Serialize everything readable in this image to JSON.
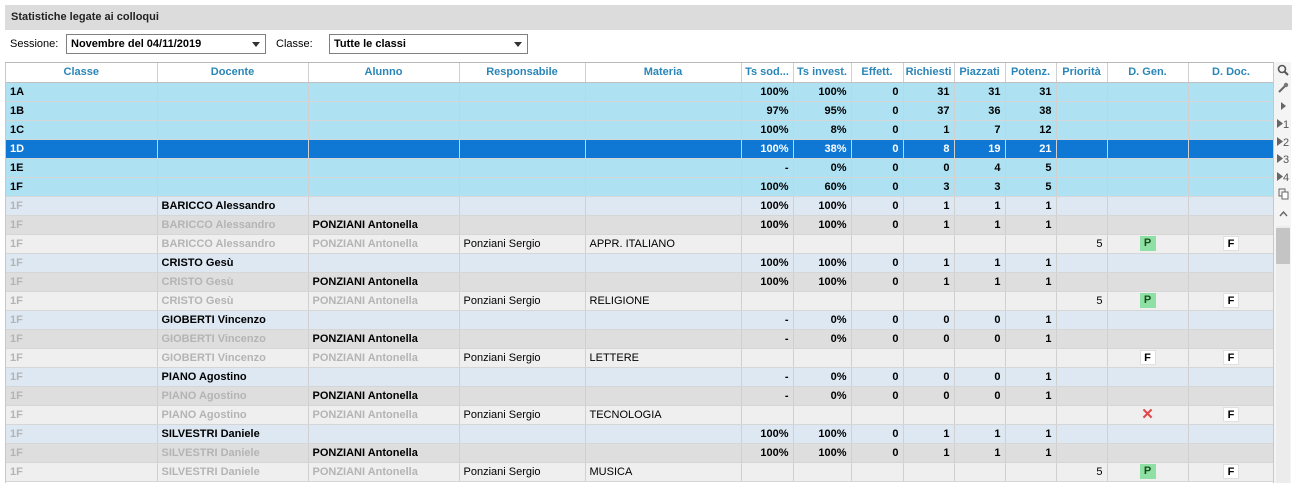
{
  "panel": {
    "title": "Statistiche legate ai colloqui"
  },
  "filters": {
    "session_label": "Sessione:",
    "session_value": "Novembre del 04/11/2019",
    "class_label": "Classe:",
    "class_value": "Tutte le classi"
  },
  "columns": [
    "Classe",
    "Docente",
    "Alunno",
    "Responsabile",
    "Materia",
    "Ts sod...",
    "Ts invest.",
    "Effett.",
    "Richiesti",
    "Piazzati",
    "Potenz.",
    "Priorità",
    "D. Gen.",
    "D. Doc."
  ],
  "rows": [
    {
      "type": "cls",
      "classe": "1A",
      "docente": "",
      "alunno": "",
      "resp": "",
      "materia": "",
      "tssod": "100%",
      "tsinv": "100%",
      "eff": "0",
      "ric": "31",
      "piaz": "31",
      "pot": "31",
      "prio": "",
      "dgen": "",
      "ddoc": ""
    },
    {
      "type": "cls",
      "classe": "1B",
      "docente": "",
      "alunno": "",
      "resp": "",
      "materia": "",
      "tssod": "97%",
      "tsinv": "95%",
      "eff": "0",
      "ric": "37",
      "piaz": "36",
      "pot": "38",
      "prio": "",
      "dgen": "",
      "ddoc": ""
    },
    {
      "type": "cls",
      "classe": "1C",
      "docente": "",
      "alunno": "",
      "resp": "",
      "materia": "",
      "tssod": "100%",
      "tsinv": "8%",
      "eff": "0",
      "ric": "1",
      "piaz": "7",
      "pot": "12",
      "prio": "",
      "dgen": "",
      "ddoc": ""
    },
    {
      "type": "sel",
      "classe": "1D",
      "docente": "",
      "alunno": "",
      "resp": "",
      "materia": "",
      "tssod": "100%",
      "tsinv": "38%",
      "eff": "0",
      "ric": "8",
      "piaz": "19",
      "pot": "21",
      "prio": "",
      "dgen": "",
      "ddoc": ""
    },
    {
      "type": "cls",
      "classe": "1E",
      "docente": "",
      "alunno": "",
      "resp": "",
      "materia": "",
      "tssod": "-",
      "tsinv": "0%",
      "eff": "0",
      "ric": "0",
      "piaz": "4",
      "pot": "5",
      "prio": "",
      "dgen": "",
      "ddoc": ""
    },
    {
      "type": "cls",
      "classe": "1F",
      "docente": "",
      "alunno": "",
      "resp": "",
      "materia": "",
      "tssod": "100%",
      "tsinv": "60%",
      "eff": "0",
      "ric": "3",
      "piaz": "3",
      "pot": "5",
      "prio": "",
      "dgen": "",
      "ddoc": ""
    },
    {
      "type": "doc",
      "classe": "1F",
      "docente": "BARICCO Alessandro",
      "alunno": "",
      "resp": "",
      "materia": "",
      "tssod": "100%",
      "tsinv": "100%",
      "eff": "0",
      "ric": "1",
      "piaz": "1",
      "pot": "1",
      "prio": "",
      "dgen": "",
      "ddoc": ""
    },
    {
      "type": "alu",
      "classe": "1F",
      "docente": "BARICCO Alessandro",
      "alunno": "PONZIANI Antonella",
      "resp": "",
      "materia": "",
      "tssod": "100%",
      "tsinv": "100%",
      "eff": "0",
      "ric": "1",
      "piaz": "1",
      "pot": "1",
      "prio": "",
      "dgen": "",
      "ddoc": ""
    },
    {
      "type": "mat",
      "classe": "1F",
      "docente": "BARICCO Alessandro",
      "alunno": "PONZIANI Antonella",
      "resp": "Ponziani Sergio",
      "materia": "APPR. ITALIANO",
      "tssod": "",
      "tsinv": "",
      "eff": "",
      "ric": "",
      "piaz": "",
      "pot": "",
      "prio": "5",
      "dgen": "P",
      "ddoc": "F"
    },
    {
      "type": "doc",
      "classe": "1F",
      "docente": "CRISTO Gesù",
      "alunno": "",
      "resp": "",
      "materia": "",
      "tssod": "100%",
      "tsinv": "100%",
      "eff": "0",
      "ric": "1",
      "piaz": "1",
      "pot": "1",
      "prio": "",
      "dgen": "",
      "ddoc": ""
    },
    {
      "type": "alu",
      "classe": "1F",
      "docente": "CRISTO Gesù",
      "alunno": "PONZIANI Antonella",
      "resp": "",
      "materia": "",
      "tssod": "100%",
      "tsinv": "100%",
      "eff": "0",
      "ric": "1",
      "piaz": "1",
      "pot": "1",
      "prio": "",
      "dgen": "",
      "ddoc": ""
    },
    {
      "type": "mat",
      "classe": "1F",
      "docente": "CRISTO Gesù",
      "alunno": "PONZIANI Antonella",
      "resp": "Ponziani Sergio",
      "materia": "RELIGIONE",
      "tssod": "",
      "tsinv": "",
      "eff": "",
      "ric": "",
      "piaz": "",
      "pot": "",
      "prio": "5",
      "dgen": "P",
      "ddoc": "F"
    },
    {
      "type": "doc",
      "classe": "1F",
      "docente": "GIOBERTI Vincenzo",
      "alunno": "",
      "resp": "",
      "materia": "",
      "tssod": "-",
      "tsinv": "0%",
      "eff": "0",
      "ric": "0",
      "piaz": "0",
      "pot": "1",
      "prio": "",
      "dgen": "",
      "ddoc": ""
    },
    {
      "type": "alu",
      "classe": "1F",
      "docente": "GIOBERTI Vincenzo",
      "alunno": "PONZIANI Antonella",
      "resp": "",
      "materia": "",
      "tssod": "-",
      "tsinv": "0%",
      "eff": "0",
      "ric": "0",
      "piaz": "0",
      "pot": "1",
      "prio": "",
      "dgen": "",
      "ddoc": ""
    },
    {
      "type": "mat",
      "classe": "1F",
      "docente": "GIOBERTI Vincenzo",
      "alunno": "PONZIANI Antonella",
      "resp": "Ponziani Sergio",
      "materia": "LETTERE",
      "tssod": "",
      "tsinv": "",
      "eff": "",
      "ric": "",
      "piaz": "",
      "pot": "",
      "prio": "",
      "dgen": "F",
      "ddoc": "F"
    },
    {
      "type": "doc",
      "classe": "1F",
      "docente": "PIANO Agostino",
      "alunno": "",
      "resp": "",
      "materia": "",
      "tssod": "-",
      "tsinv": "0%",
      "eff": "0",
      "ric": "0",
      "piaz": "0",
      "pot": "1",
      "prio": "",
      "dgen": "",
      "ddoc": ""
    },
    {
      "type": "alu",
      "classe": "1F",
      "docente": "PIANO Agostino",
      "alunno": "PONZIANI Antonella",
      "resp": "",
      "materia": "",
      "tssod": "-",
      "tsinv": "0%",
      "eff": "0",
      "ric": "0",
      "piaz": "0",
      "pot": "1",
      "prio": "",
      "dgen": "",
      "ddoc": ""
    },
    {
      "type": "mat",
      "classe": "1F",
      "docente": "PIANO Agostino",
      "alunno": "PONZIANI Antonella",
      "resp": "Ponziani Sergio",
      "materia": "TECNOLOGIA",
      "tssod": "",
      "tsinv": "",
      "eff": "",
      "ric": "",
      "piaz": "",
      "pot": "",
      "prio": "",
      "dgen": "X",
      "ddoc": "F"
    },
    {
      "type": "doc",
      "classe": "1F",
      "docente": "SILVESTRI Daniele",
      "alunno": "",
      "resp": "",
      "materia": "",
      "tssod": "100%",
      "tsinv": "100%",
      "eff": "0",
      "ric": "1",
      "piaz": "1",
      "pot": "1",
      "prio": "",
      "dgen": "",
      "ddoc": ""
    },
    {
      "type": "alu",
      "classe": "1F",
      "docente": "SILVESTRI Daniele",
      "alunno": "PONZIANI Antonella",
      "resp": "",
      "materia": "",
      "tssod": "100%",
      "tsinv": "100%",
      "eff": "0",
      "ric": "1",
      "piaz": "1",
      "pot": "1",
      "prio": "",
      "dgen": "",
      "ddoc": ""
    },
    {
      "type": "mat",
      "classe": "1F",
      "docente": "SILVESTRI Daniele",
      "alunno": "PONZIANI Antonella",
      "resp": "Ponziani Sergio",
      "materia": "MUSICA",
      "tssod": "",
      "tsinv": "",
      "eff": "",
      "ric": "",
      "piaz": "",
      "pot": "",
      "prio": "5",
      "dgen": "P",
      "ddoc": "F"
    }
  ],
  "toolbar": {
    "icons": [
      "search-icon",
      "wrench-icon",
      "play-icon",
      "level-1-icon",
      "level-2-icon",
      "level-3-icon",
      "level-4-icon",
      "copy-icon",
      "collapse-up-icon"
    ],
    "labels": {
      "level1": "1",
      "level2": "2",
      "level3": "3",
      "level4": "4"
    }
  },
  "colors": {
    "header_text": "#2a86b8",
    "class_row": "#aee2f3",
    "selected_row": "#0e78d4",
    "badge_p": "#8ee0a4",
    "x_mark": "#e04848"
  }
}
